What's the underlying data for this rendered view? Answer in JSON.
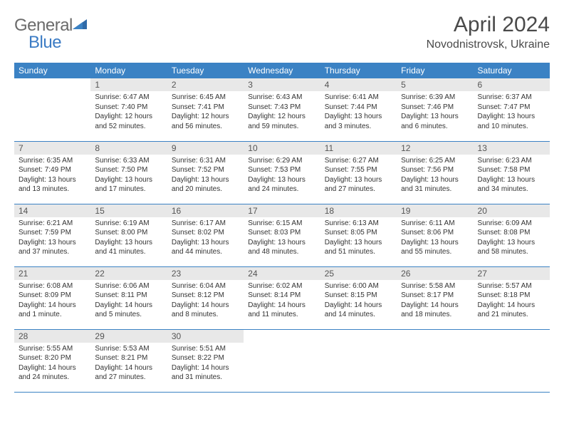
{
  "logo": {
    "part1": "General",
    "part2": "Blue"
  },
  "title": "April 2024",
  "location": "Novodnistrovsk, Ukraine",
  "header_bg": "#3b82c4",
  "header_fg": "#ffffff",
  "daynum_bg": "#e8e8e8",
  "weekdays": [
    "Sunday",
    "Monday",
    "Tuesday",
    "Wednesday",
    "Thursday",
    "Friday",
    "Saturday"
  ],
  "weeks": [
    [
      null,
      {
        "n": "1",
        "sr": "6:47 AM",
        "ss": "7:40 PM",
        "dl": "12 hours and 52 minutes."
      },
      {
        "n": "2",
        "sr": "6:45 AM",
        "ss": "7:41 PM",
        "dl": "12 hours and 56 minutes."
      },
      {
        "n": "3",
        "sr": "6:43 AM",
        "ss": "7:43 PM",
        "dl": "12 hours and 59 minutes."
      },
      {
        "n": "4",
        "sr": "6:41 AM",
        "ss": "7:44 PM",
        "dl": "13 hours and 3 minutes."
      },
      {
        "n": "5",
        "sr": "6:39 AM",
        "ss": "7:46 PM",
        "dl": "13 hours and 6 minutes."
      },
      {
        "n": "6",
        "sr": "6:37 AM",
        "ss": "7:47 PM",
        "dl": "13 hours and 10 minutes."
      }
    ],
    [
      {
        "n": "7",
        "sr": "6:35 AM",
        "ss": "7:49 PM",
        "dl": "13 hours and 13 minutes."
      },
      {
        "n": "8",
        "sr": "6:33 AM",
        "ss": "7:50 PM",
        "dl": "13 hours and 17 minutes."
      },
      {
        "n": "9",
        "sr": "6:31 AM",
        "ss": "7:52 PM",
        "dl": "13 hours and 20 minutes."
      },
      {
        "n": "10",
        "sr": "6:29 AM",
        "ss": "7:53 PM",
        "dl": "13 hours and 24 minutes."
      },
      {
        "n": "11",
        "sr": "6:27 AM",
        "ss": "7:55 PM",
        "dl": "13 hours and 27 minutes."
      },
      {
        "n": "12",
        "sr": "6:25 AM",
        "ss": "7:56 PM",
        "dl": "13 hours and 31 minutes."
      },
      {
        "n": "13",
        "sr": "6:23 AM",
        "ss": "7:58 PM",
        "dl": "13 hours and 34 minutes."
      }
    ],
    [
      {
        "n": "14",
        "sr": "6:21 AM",
        "ss": "7:59 PM",
        "dl": "13 hours and 37 minutes."
      },
      {
        "n": "15",
        "sr": "6:19 AM",
        "ss": "8:00 PM",
        "dl": "13 hours and 41 minutes."
      },
      {
        "n": "16",
        "sr": "6:17 AM",
        "ss": "8:02 PM",
        "dl": "13 hours and 44 minutes."
      },
      {
        "n": "17",
        "sr": "6:15 AM",
        "ss": "8:03 PM",
        "dl": "13 hours and 48 minutes."
      },
      {
        "n": "18",
        "sr": "6:13 AM",
        "ss": "8:05 PM",
        "dl": "13 hours and 51 minutes."
      },
      {
        "n": "19",
        "sr": "6:11 AM",
        "ss": "8:06 PM",
        "dl": "13 hours and 55 minutes."
      },
      {
        "n": "20",
        "sr": "6:09 AM",
        "ss": "8:08 PM",
        "dl": "13 hours and 58 minutes."
      }
    ],
    [
      {
        "n": "21",
        "sr": "6:08 AM",
        "ss": "8:09 PM",
        "dl": "14 hours and 1 minute."
      },
      {
        "n": "22",
        "sr": "6:06 AM",
        "ss": "8:11 PM",
        "dl": "14 hours and 5 minutes."
      },
      {
        "n": "23",
        "sr": "6:04 AM",
        "ss": "8:12 PM",
        "dl": "14 hours and 8 minutes."
      },
      {
        "n": "24",
        "sr": "6:02 AM",
        "ss": "8:14 PM",
        "dl": "14 hours and 11 minutes."
      },
      {
        "n": "25",
        "sr": "6:00 AM",
        "ss": "8:15 PM",
        "dl": "14 hours and 14 minutes."
      },
      {
        "n": "26",
        "sr": "5:58 AM",
        "ss": "8:17 PM",
        "dl": "14 hours and 18 minutes."
      },
      {
        "n": "27",
        "sr": "5:57 AM",
        "ss": "8:18 PM",
        "dl": "14 hours and 21 minutes."
      }
    ],
    [
      {
        "n": "28",
        "sr": "5:55 AM",
        "ss": "8:20 PM",
        "dl": "14 hours and 24 minutes."
      },
      {
        "n": "29",
        "sr": "5:53 AM",
        "ss": "8:21 PM",
        "dl": "14 hours and 27 minutes."
      },
      {
        "n": "30",
        "sr": "5:51 AM",
        "ss": "8:22 PM",
        "dl": "14 hours and 31 minutes."
      },
      null,
      null,
      null,
      null
    ]
  ],
  "labels": {
    "sunrise": "Sunrise: ",
    "sunset": "Sunset: ",
    "daylight": "Daylight: "
  }
}
